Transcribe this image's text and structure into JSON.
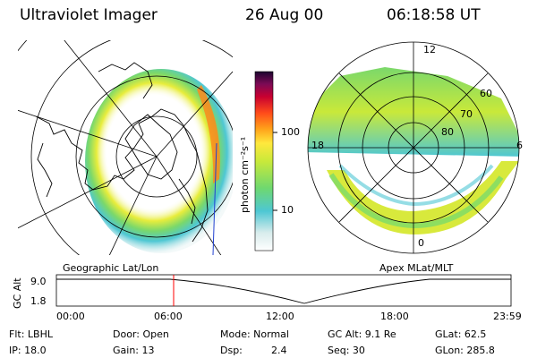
{
  "header": {
    "title": "Ultraviolet Imager",
    "date": "26 Aug 00",
    "time": "06:18:58 UT"
  },
  "colorbar": {
    "unit_label": "photon cm⁻²s⁻¹",
    "ticks": [
      "100",
      "10"
    ],
    "colors": [
      "#ffffff",
      "#d8ecec",
      "#4ec7d3",
      "#6fd86f",
      "#c9e93a",
      "#ffe83d",
      "#ffa11a",
      "#ff4a1a",
      "#c80030",
      "#7d0a55",
      "#1c0530"
    ]
  },
  "left_panel": {
    "caption": "Geographic Lat/Lon"
  },
  "right_panel": {
    "caption": "Apex MLat/MLT",
    "mlt_labels": [
      "12",
      "18",
      "6",
      "0"
    ],
    "lat_labels": [
      "60",
      "70",
      "80"
    ]
  },
  "altitude_plot": {
    "ylabel": "GC Alt",
    "yticks": [
      "9.0",
      "1.8"
    ],
    "xticks": [
      "00:00",
      "06:00",
      "12:00",
      "18:00",
      "23:59"
    ],
    "cursor_color": "#ff0000"
  },
  "footer": {
    "flt": "Flt: LBHL",
    "ip": "IP: 18.0",
    "door": "Door: Open",
    "gain": "Gain: 13",
    "mode": "Mode: Normal",
    "dsp_label": "Dsp:",
    "dsp_value": "2.4",
    "gc_alt": "GC Alt: 9.1 Re",
    "seq": "Seq: 30",
    "glat": "GLat:  62.5",
    "glon": "GLon: 285.8"
  }
}
